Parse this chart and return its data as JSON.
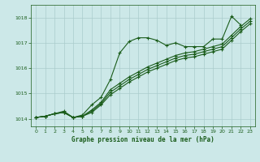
{
  "title": "Graphe pression niveau de la mer (hPa)",
  "bg_color": "#cce8e8",
  "line_color": "#1a5c1a",
  "grid_color": "#aacccc",
  "ylim": [
    1013.7,
    1018.5
  ],
  "xlim": [
    -0.5,
    23.5
  ],
  "yticks": [
    1014,
    1015,
    1016,
    1017,
    1018
  ],
  "xticks": [
    0,
    1,
    2,
    3,
    4,
    5,
    6,
    7,
    8,
    9,
    10,
    11,
    12,
    13,
    14,
    15,
    16,
    17,
    18,
    19,
    20,
    21,
    22,
    23
  ],
  "series1_x": [
    0,
    1,
    2,
    3,
    4,
    5,
    6,
    7,
    8,
    9,
    10,
    11,
    12,
    13,
    14,
    15,
    16,
    17,
    18,
    19,
    20,
    21,
    22
  ],
  "series1_y": [
    1014.05,
    1014.1,
    1014.2,
    1014.3,
    1014.05,
    1014.15,
    1014.55,
    1014.85,
    1015.55,
    1016.6,
    1017.05,
    1017.2,
    1017.2,
    1017.1,
    1016.9,
    1017.0,
    1016.85,
    1016.85,
    1016.85,
    1017.15,
    1017.15,
    1018.05,
    1017.7
  ],
  "series2_x": [
    0,
    1,
    2,
    3,
    4,
    5,
    6,
    7,
    8,
    9,
    10,
    11,
    12,
    13,
    14,
    15,
    16,
    17,
    18,
    19,
    20,
    21,
    22,
    23
  ],
  "series2_y": [
    1014.05,
    1014.1,
    1014.2,
    1014.25,
    1014.05,
    1014.1,
    1014.35,
    1014.65,
    1015.15,
    1015.4,
    1015.65,
    1015.85,
    1016.05,
    1016.2,
    1016.35,
    1016.5,
    1016.6,
    1016.65,
    1016.75,
    1016.85,
    1016.95,
    1017.3,
    1017.65,
    1017.95
  ],
  "series3_x": [
    0,
    1,
    2,
    3,
    4,
    5,
    6,
    7,
    8,
    9,
    10,
    11,
    12,
    13,
    14,
    15,
    16,
    17,
    18,
    19,
    20,
    21,
    22,
    23
  ],
  "series3_y": [
    1014.05,
    1014.1,
    1014.2,
    1014.25,
    1014.05,
    1014.1,
    1014.3,
    1014.6,
    1015.05,
    1015.3,
    1015.55,
    1015.75,
    1015.95,
    1016.1,
    1016.25,
    1016.4,
    1016.5,
    1016.55,
    1016.65,
    1016.75,
    1016.85,
    1017.2,
    1017.55,
    1017.85
  ],
  "series4_x": [
    0,
    1,
    2,
    3,
    4,
    5,
    6,
    7,
    8,
    9,
    10,
    11,
    12,
    13,
    14,
    15,
    16,
    17,
    18,
    19,
    20,
    21,
    22,
    23
  ],
  "series4_y": [
    1014.05,
    1014.1,
    1014.2,
    1014.25,
    1014.05,
    1014.1,
    1014.25,
    1014.55,
    1014.95,
    1015.2,
    1015.45,
    1015.65,
    1015.85,
    1016.0,
    1016.15,
    1016.3,
    1016.4,
    1016.45,
    1016.55,
    1016.65,
    1016.75,
    1017.1,
    1017.45,
    1017.75
  ]
}
